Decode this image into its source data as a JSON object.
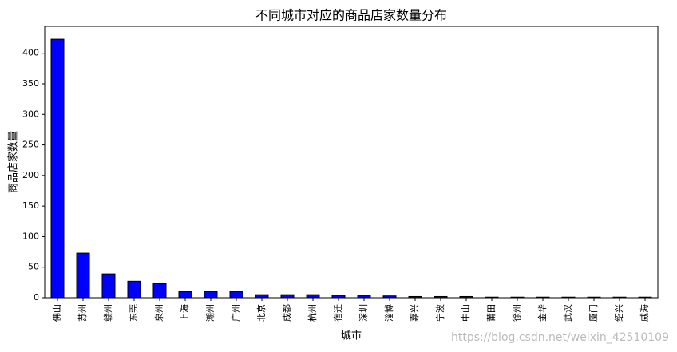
{
  "chart_data": {
    "type": "bar",
    "title": "不同城市对应的商品店家数量分布",
    "x_label": "城市",
    "y_label": "商品店家数量",
    "categories": [
      "佛山",
      "苏州",
      "赣州",
      "东莞",
      "泉州",
      "上海",
      "潮州",
      "广州",
      "北京",
      "成都",
      "杭州",
      "宿迁",
      "深圳",
      "淄博",
      "嘉兴",
      "宁波",
      "中山",
      "莆田",
      "徐州",
      "金华",
      "武汉",
      "厦门",
      "绍兴",
      "威海"
    ],
    "values": [
      423,
      73,
      39,
      27,
      23,
      10,
      10,
      10,
      5,
      5,
      5,
      4,
      4,
      3,
      2,
      2,
      2,
      1,
      1,
      1,
      1,
      1,
      1,
      1
    ],
    "color": "#0000ff",
    "ylim": [
      0,
      444
    ],
    "yticks": [
      0,
      50,
      100,
      150,
      200,
      250,
      300,
      350,
      400
    ],
    "watermark": "https://blog.csdn.net/weixin_42510109"
  }
}
